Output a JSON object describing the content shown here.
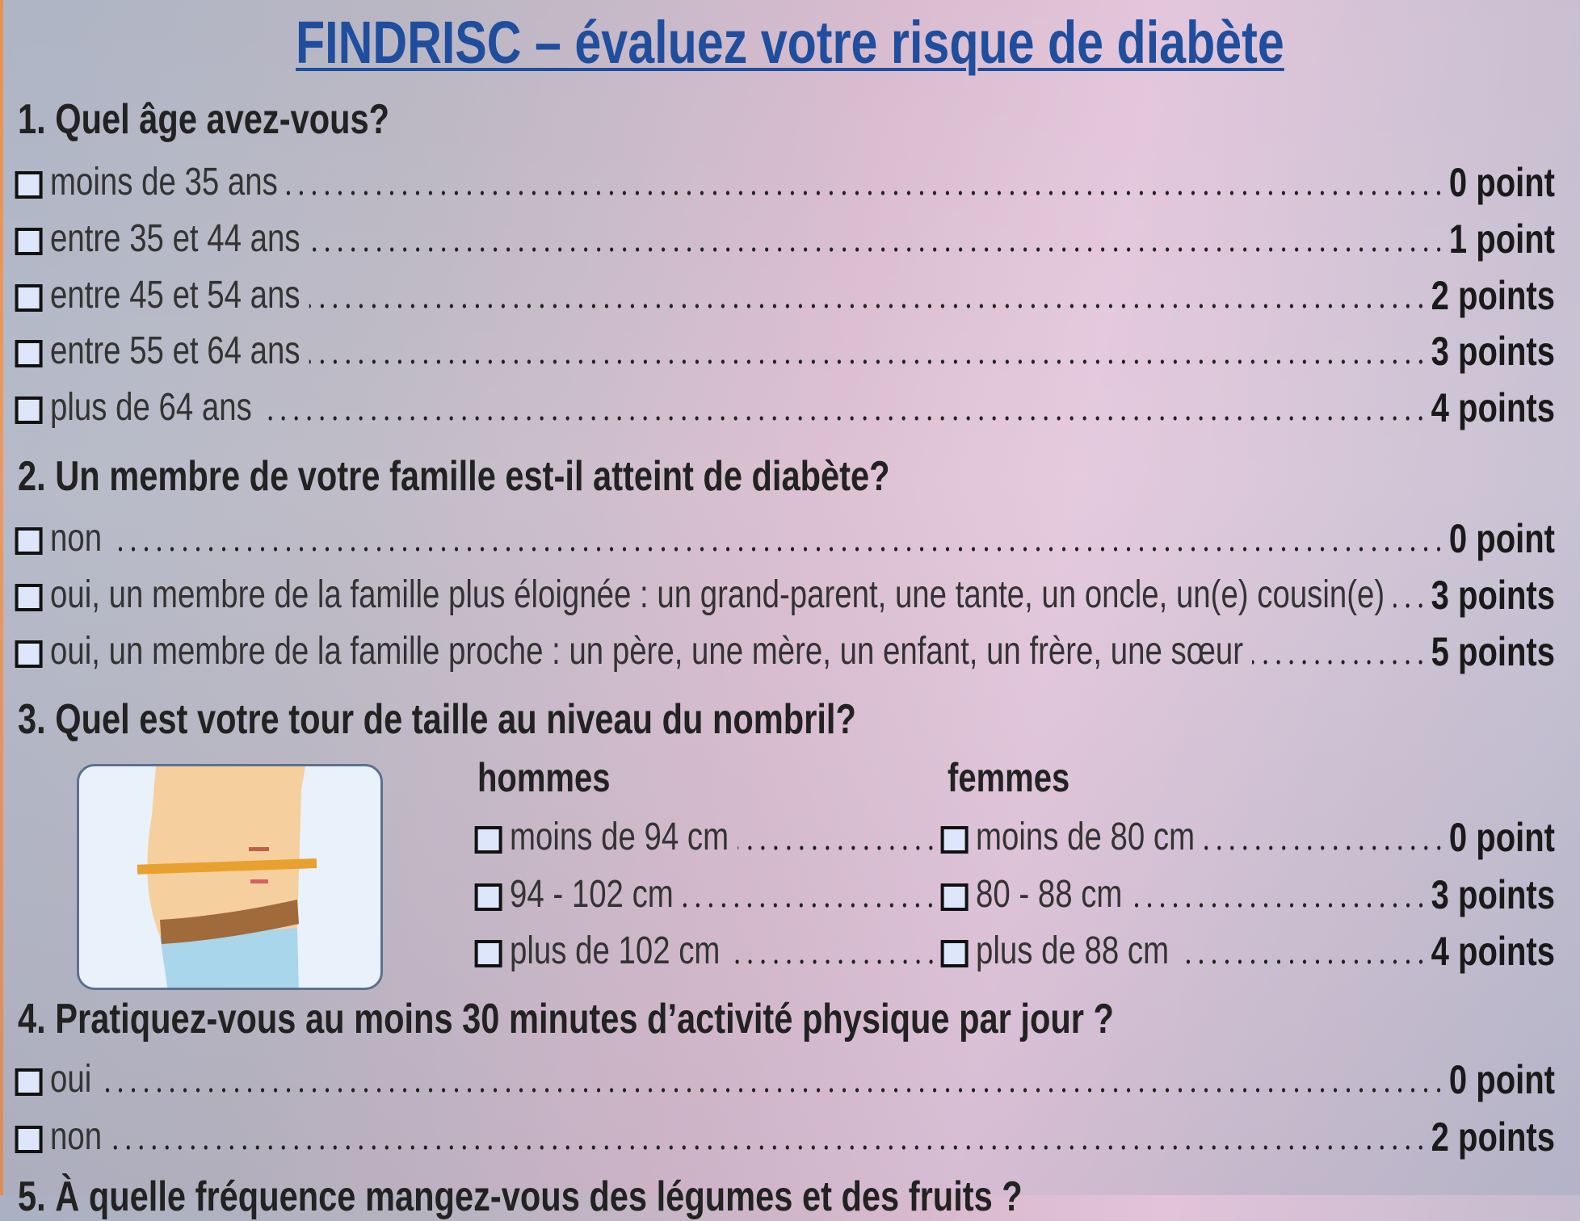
{
  "title": "FINDRISC – évaluez votre risque de diabète",
  "questions": [
    {
      "heading": "1. Quel âge avez-vous?",
      "options": [
        {
          "label": "moins de 35 ans",
          "points": "0 point"
        },
        {
          "label": "entre 35 et 44 ans",
          "points": "1 point"
        },
        {
          "label": "entre 45 et 54 ans",
          "points": "2 points"
        },
        {
          "label": "entre 55 et 64 ans",
          "points": "3 points"
        },
        {
          "label": "plus de 64 ans",
          "points": "4 points"
        }
      ]
    },
    {
      "heading": "2. Un membre de votre famille est-il atteint de diabète?",
      "options": [
        {
          "label": "non",
          "points": "0 point"
        },
        {
          "label": "oui, un membre de la famille plus éloignée : un grand-parent, une tante, un oncle, un(e) cousin(e)",
          "points": "3 points"
        },
        {
          "label": "oui, un membre de la famille proche : un père, une mère, un enfant, un frère, une sœur",
          "points": "5 points"
        }
      ]
    },
    {
      "heading": "3. Quel est votre tour de taille au niveau du nombril?",
      "men_label": "hommes",
      "women_label": "femmes",
      "options": [
        {
          "men": "moins de 94 cm",
          "women": "moins de 80 cm",
          "points": "0 point"
        },
        {
          "men": "94 - 102 cm",
          "women": "80 - 88 cm",
          "points": "3 points"
        },
        {
          "men": "plus de 102 cm",
          "women": "plus de 88 cm",
          "points": "4 points"
        }
      ]
    },
    {
      "heading": "4. Pratiquez-vous au moins 30 minutes d’activité physique par jour ?",
      "options": [
        {
          "label": "oui",
          "points": "0 point"
        },
        {
          "label": "non",
          "points": "2 points"
        }
      ]
    },
    {
      "heading": "5. À quelle fréquence mangez-vous des légumes et des fruits ?"
    }
  ],
  "colors": {
    "title": "#1f4e9e",
    "checkbox_fill": "#dde6fa",
    "left_border": "#e88a4a"
  }
}
